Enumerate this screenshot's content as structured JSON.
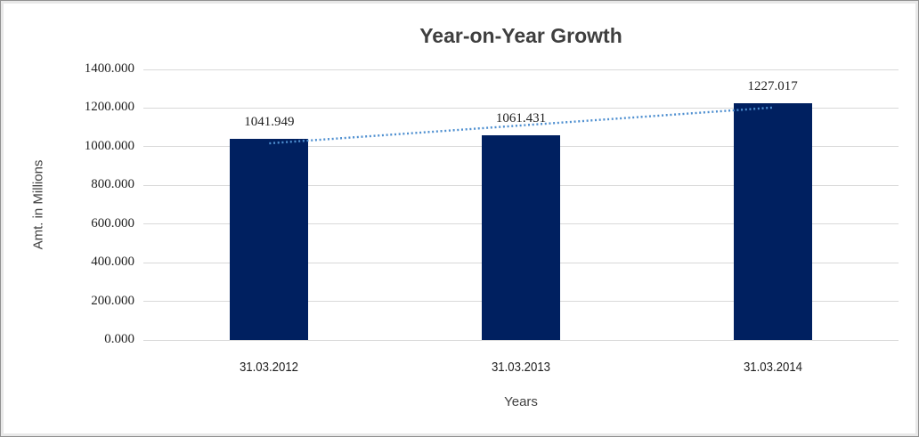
{
  "chart_data": {
    "type": "bar",
    "title": "Year-on-Year Growth",
    "xlabel": "Years",
    "ylabel": "Amt. in Millions",
    "categories": [
      "31.03.2012",
      "31.03.2013",
      "31.03.2014"
    ],
    "values": [
      1041.949,
      1061.431,
      1227.017
    ],
    "data_labels": [
      "1041.949",
      "1061.431",
      "1227.017"
    ],
    "y_ticks": [
      "1400.000",
      "1200.000",
      "1000.000",
      "800.000",
      "600.000",
      "400.000",
      "200.000",
      "0.000"
    ],
    "ylim": [
      0,
      1400
    ],
    "y_tick_step": 200,
    "grid": true,
    "legend": "none",
    "bar_color": "#002060",
    "trendline": {
      "type": "linear",
      "style": "dotted",
      "color": "#4e8fd0",
      "fitted_values": [
        1017.598,
        1110.132,
        1202.666
      ]
    }
  },
  "colors": {
    "background": "#ffffff",
    "gridline": "#d9d9d9",
    "title_text": "#3f3f3f",
    "tick_text": "#1f1f1f",
    "axis_title_text": "#404040",
    "frame_outer": "#919191",
    "frame_inner": "#e8e8e8"
  }
}
